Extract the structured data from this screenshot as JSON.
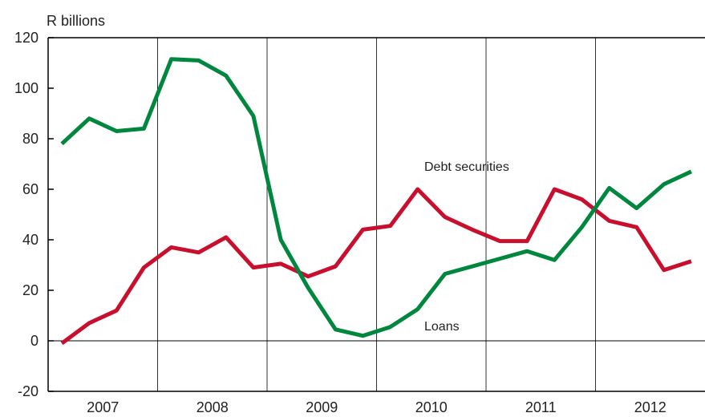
{
  "chart_data": {
    "type": "line",
    "ylabel": "R billions",
    "ylim": [
      -20,
      120
    ],
    "yticks": [
      -20,
      0,
      20,
      40,
      60,
      80,
      100,
      120
    ],
    "xlim": [
      0,
      24
    ],
    "year_labels": [
      "2007",
      "2008",
      "2009",
      "2010",
      "2011",
      "2012"
    ],
    "year_boundaries": [
      4,
      8,
      12,
      16,
      20
    ],
    "grid": false,
    "colors": {
      "Debt securities": "#c8102e",
      "Loans": "#00873e"
    },
    "annotations": [
      {
        "text": "Debt securities",
        "series": "Debt securities"
      },
      {
        "text": "Loans",
        "series": "Loans"
      }
    ],
    "series": [
      {
        "name": "Debt securities",
        "x": [
          0.5,
          1.5,
          2.5,
          3.5,
          4.5,
          5.5,
          6.5,
          7.5,
          8.5,
          9.5,
          10.5,
          11.5,
          12.5,
          13.5,
          14.5,
          15.5,
          16.5,
          17.5,
          18.5,
          19.5,
          20.5,
          21.5,
          22.5,
          23.5
        ],
        "values": [
          -1,
          7,
          12,
          29,
          37,
          35,
          41,
          29,
          30.5,
          25.5,
          29.5,
          44,
          45.5,
          60,
          49,
          44,
          39.5,
          39.5,
          60,
          56,
          47.5,
          45,
          28,
          31.5
        ]
      },
      {
        "name": "Loans",
        "x": [
          0.5,
          1.5,
          2.5,
          3.5,
          4.5,
          5.5,
          6.5,
          7.5,
          8.5,
          9.5,
          10.5,
          11.5,
          12.5,
          13.5,
          14.5,
          15.5,
          16.5,
          17.5,
          18.5,
          19.5,
          20.5,
          21.5,
          22.5,
          23.5
        ],
        "values": [
          78,
          88,
          83,
          84,
          111.5,
          111,
          105,
          89,
          40,
          21,
          4.5,
          2,
          5.5,
          12.5,
          26.5,
          29.5,
          32.5,
          35.5,
          32,
          45,
          60.5,
          52.5,
          62,
          67
        ]
      }
    ]
  }
}
